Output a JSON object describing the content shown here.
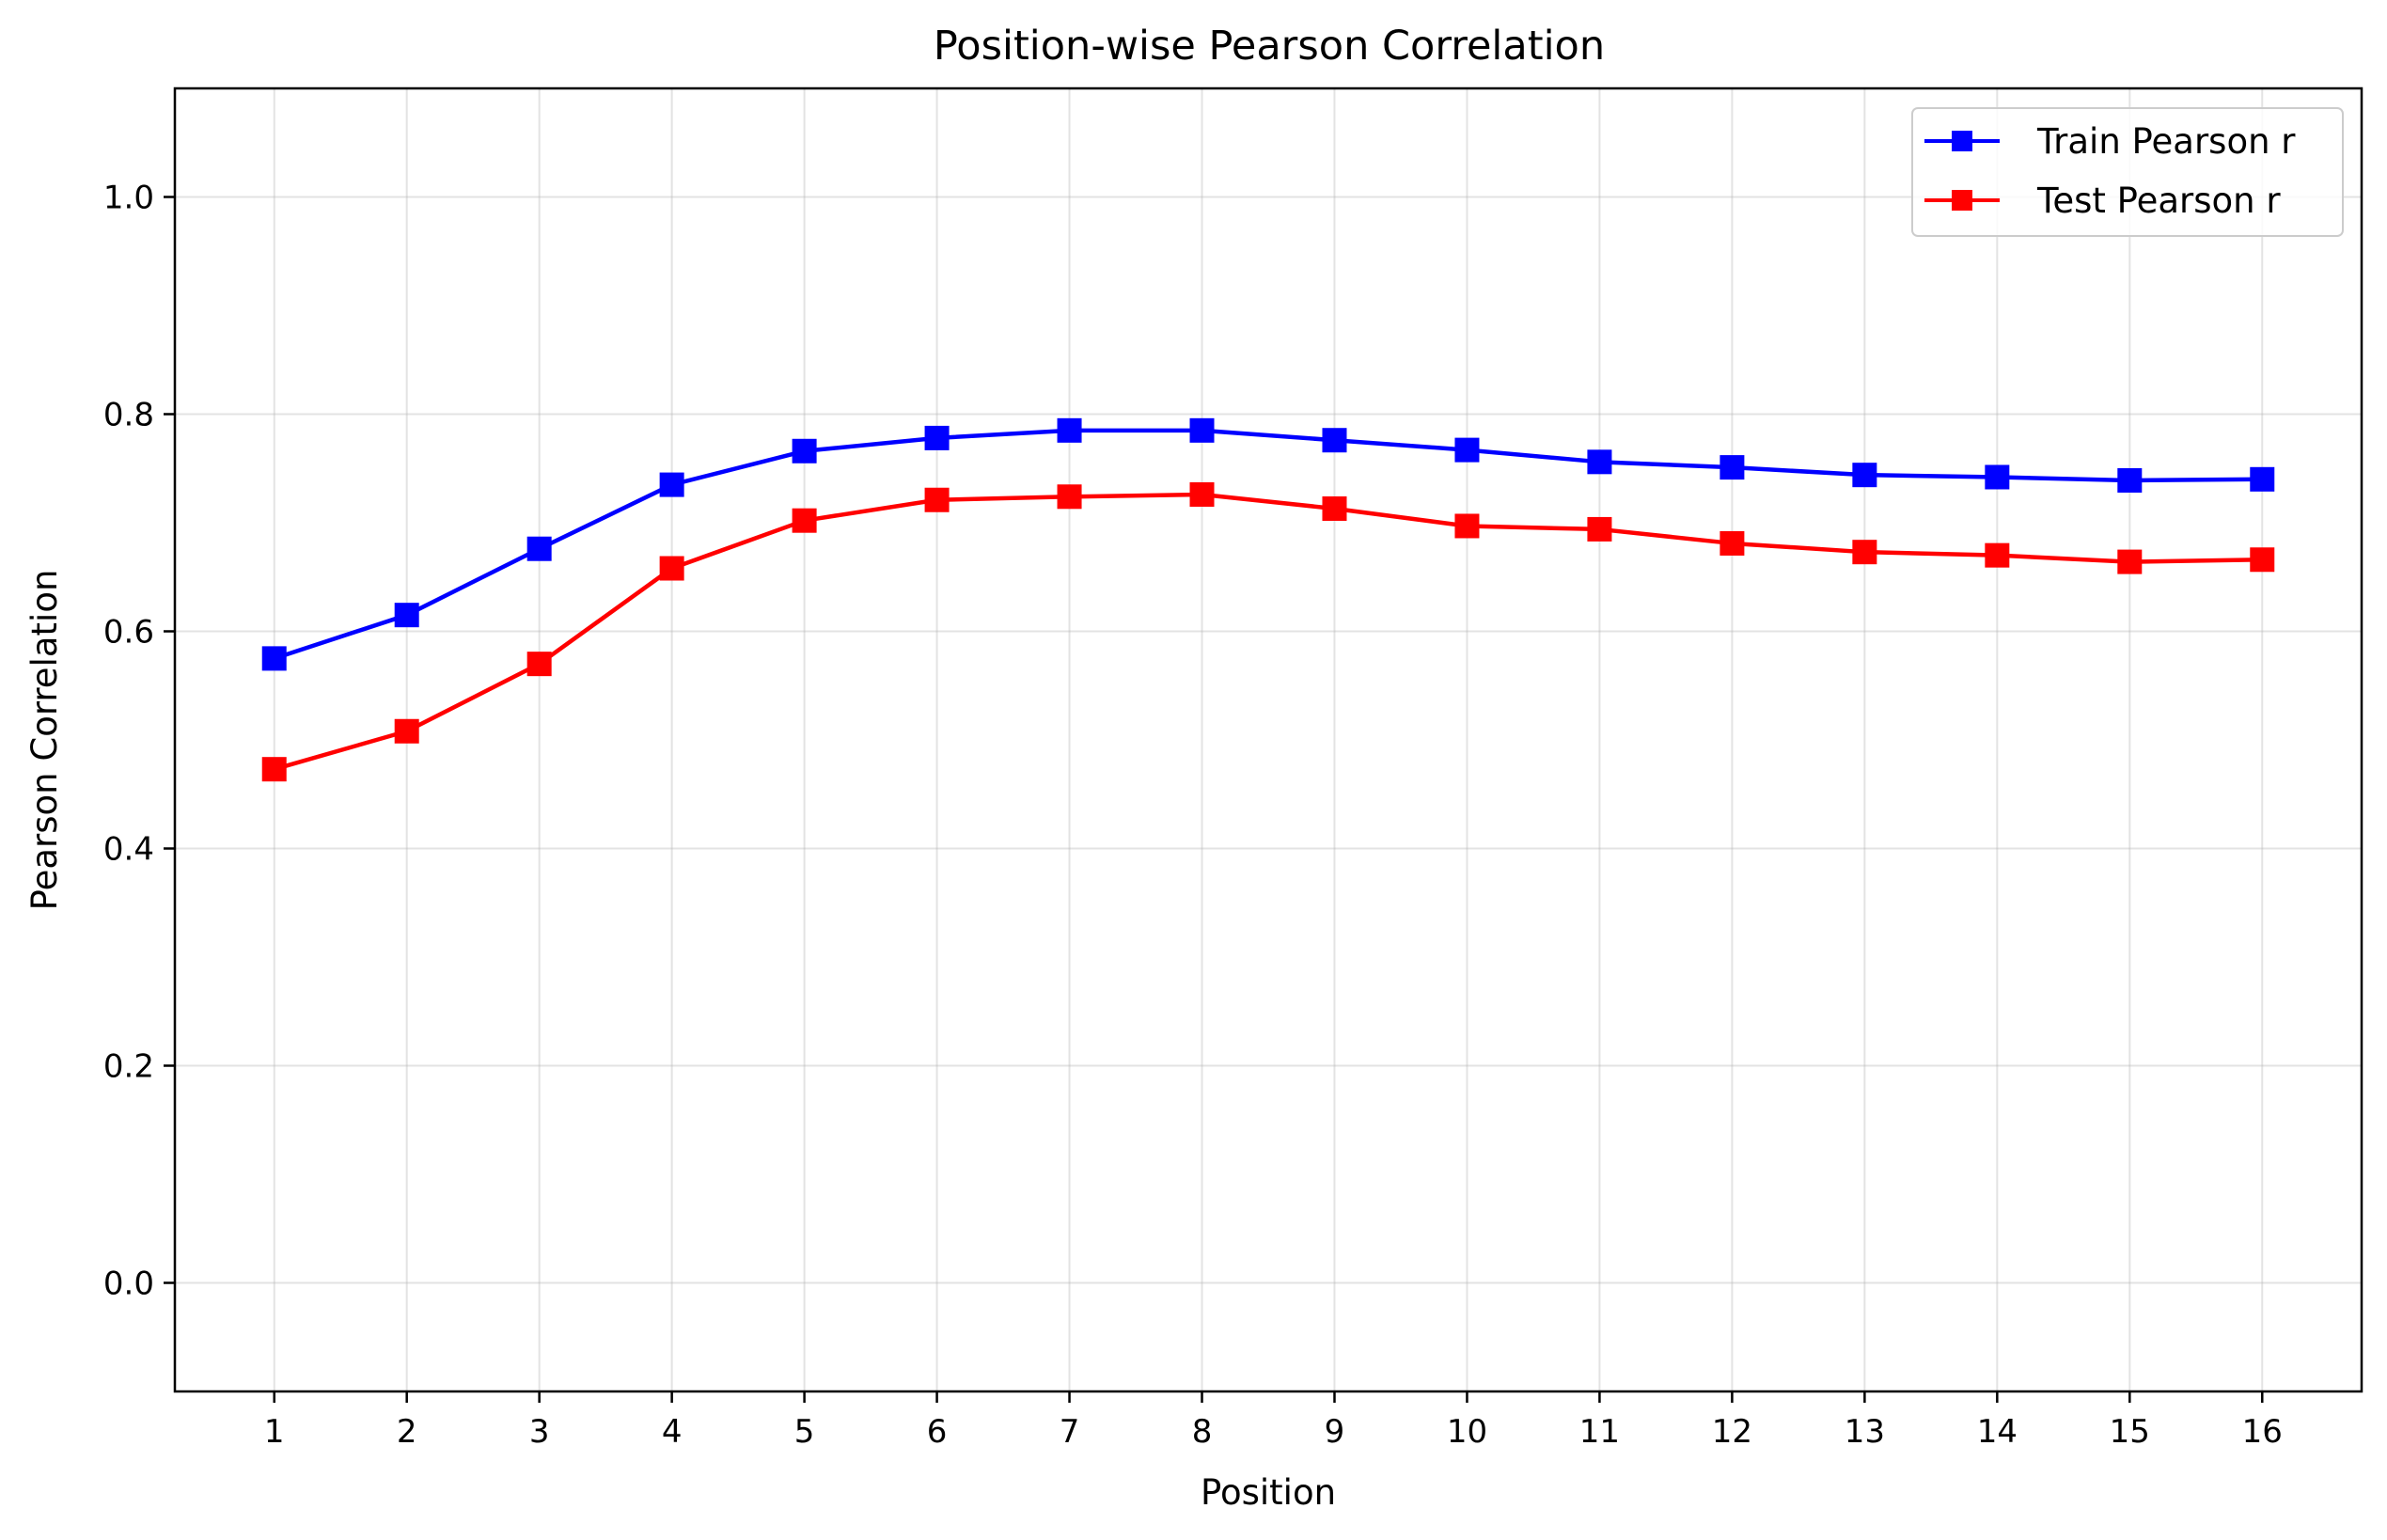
{
  "chart_data": {
    "type": "line",
    "title": "Position-wise Pearson Correlation",
    "xlabel": "Position",
    "ylabel": "Pearson Correlation",
    "x": [
      1,
      2,
      3,
      4,
      5,
      6,
      7,
      8,
      9,
      10,
      11,
      12,
      13,
      14,
      15,
      16
    ],
    "xlim": [
      0.25,
      16.75
    ],
    "ylim": [
      -0.1,
      1.1
    ],
    "yticks": [
      0.0,
      0.2,
      0.4,
      0.6,
      0.8,
      1.0
    ],
    "ytick_labels": [
      "0.0",
      "0.2",
      "0.4",
      "0.6",
      "0.8",
      "1.0"
    ],
    "xtick_labels": [
      "1",
      "2",
      "3",
      "4",
      "5",
      "6",
      "7",
      "8",
      "9",
      "10",
      "11",
      "12",
      "13",
      "14",
      "15",
      "16"
    ],
    "grid": true,
    "legend_position": "top-right",
    "series": [
      {
        "name": "Train Pearson r",
        "color": "#0000ff",
        "marker": "square",
        "values": [
          0.575,
          0.615,
          0.676,
          0.735,
          0.766,
          0.778,
          0.785,
          0.785,
          0.776,
          0.767,
          0.756,
          0.751,
          0.744,
          0.742,
          0.739,
          0.74
        ]
      },
      {
        "name": "Test Pearson r",
        "color": "#ff0000",
        "marker": "square",
        "values": [
          0.473,
          0.508,
          0.57,
          0.658,
          0.702,
          0.721,
          0.724,
          0.726,
          0.713,
          0.697,
          0.694,
          0.681,
          0.673,
          0.67,
          0.664,
          0.666
        ]
      }
    ]
  }
}
